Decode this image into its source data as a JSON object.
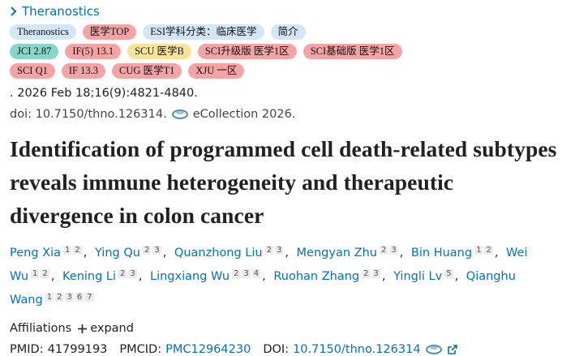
{
  "journal": "Theranostics",
  "badges": [
    [
      {
        "text": "Theranostics",
        "kind": "blue"
      },
      {
        "text": "医学TOP",
        "kind": "pink"
      },
      {
        "text": "ESI学科分类：临床医学",
        "kind": "blue"
      },
      {
        "text": "简介",
        "kind": "blue"
      }
    ],
    [
      {
        "text": "JCI 2.87",
        "kind": "green"
      },
      {
        "text": "IF(5) 13.1",
        "kind": "pink"
      },
      {
        "text": "SCU 医学B",
        "kind": "yellow"
      },
      {
        "text": "SCI升级版 医学1区",
        "kind": "pink"
      },
      {
        "text": "SCI基础版 医学1区",
        "kind": "pink"
      }
    ],
    [
      {
        "text": "SCI Q1",
        "kind": "pink"
      },
      {
        "text": "IF 13.3",
        "kind": "pink"
      },
      {
        "text": "CUG 医学T1",
        "kind": "pink"
      },
      {
        "text": "XJU 一区",
        "kind": "pink"
      }
    ]
  ],
  "citation": ". 2026 Feb 18;16(9):4821-4840.",
  "doi_line": "doi: 10.7150/thno.126314.",
  "ecollection": "eCollection 2026.",
  "title": "Identification of programmed cell death-related subtypes reveals immune heterogeneity and therapeutic divergence in colon cancer",
  "authors": [
    {
      "name": "Peng Xia",
      "affiliations": [
        1,
        2
      ]
    },
    {
      "name": "Ying Qu",
      "affiliations": [
        2,
        3
      ]
    },
    {
      "name": "Quanzhong Liu",
      "affiliations": [
        2,
        3
      ]
    },
    {
      "name": "Mengyan Zhu",
      "affiliations": [
        2,
        3
      ]
    },
    {
      "name": "Bin Huang",
      "affiliations": [
        1,
        2
      ]
    },
    {
      "name": "Wei Wu",
      "affiliations": [
        1,
        2
      ]
    },
    {
      "name": "Kening Li",
      "affiliations": [
        2,
        3
      ]
    },
    {
      "name": "Lingxiang Wu",
      "affiliations": [
        2,
        3,
        4
      ]
    },
    {
      "name": "Ruohan Zhang",
      "affiliations": [
        2,
        3
      ]
    },
    {
      "name": "Yingli Lv",
      "affiliations": [
        5
      ]
    },
    {
      "name": "Qianghu Wang",
      "affiliations": [
        1,
        2,
        3,
        6,
        7
      ]
    }
  ],
  "affiliations_label": "Affiliations",
  "expand": "expand",
  "identifiers": {
    "pmid_label": "PMID:",
    "pmid": "41799193",
    "pmcid_label": "PMCID:",
    "pmcid": "PMC12964230",
    "doi_label": "DOI:",
    "doi": "10.7150/thno.126314"
  }
}
